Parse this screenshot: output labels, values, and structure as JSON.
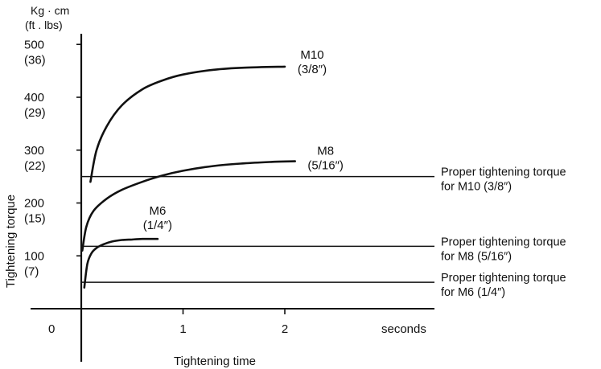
{
  "chart_data": {
    "type": "line",
    "ylabel": "Tightening torque",
    "xlabel": "Tightening time",
    "y_unit": [
      "Kg · cm",
      "(ft . lbs)"
    ],
    "x_unit": "seconds",
    "x_origin_label": "0",
    "xlim": [
      -0.25,
      3.4
    ],
    "ylim": [
      0,
      510
    ],
    "x_ticks": [
      {
        "value": 1,
        "label": "1"
      },
      {
        "value": 2,
        "label": "2"
      }
    ],
    "y_ticks": [
      {
        "value": 100,
        "label": "100",
        "sublabel": "(7)"
      },
      {
        "value": 200,
        "label": "200",
        "sublabel": "(15)"
      },
      {
        "value": 300,
        "label": "300",
        "sublabel": "(22)"
      },
      {
        "value": 400,
        "label": "400",
        "sublabel": "(29)"
      },
      {
        "value": 500,
        "label": "500",
        "sublabel": "(36)"
      }
    ],
    "series": [
      {
        "name": "M10",
        "size": "(3/8″)",
        "x": [
          0.09,
          0.15,
          0.25,
          0.4,
          0.6,
          0.8,
          1.0,
          1.3,
          1.6,
          2.0
        ],
        "y": [
          240,
          300,
          345,
          385,
          415,
          432,
          443,
          452,
          456,
          458
        ]
      },
      {
        "name": "M8",
        "size": "(5/16″)",
        "x": [
          0.01,
          0.05,
          0.12,
          0.25,
          0.4,
          0.6,
          0.8,
          1.0,
          1.3,
          1.6,
          1.9,
          2.1
        ],
        "y": [
          110,
          155,
          185,
          208,
          225,
          240,
          252,
          261,
          270,
          275,
          278,
          279
        ]
      },
      {
        "name": "M6",
        "size": "(1/4″)",
        "x": [
          0.03,
          0.06,
          0.1,
          0.15,
          0.22,
          0.3,
          0.4,
          0.5,
          0.6,
          0.75
        ],
        "y": [
          40,
          85,
          105,
          115,
          122,
          127,
          130,
          131,
          132,
          132
        ]
      }
    ],
    "reference_lines": [
      {
        "y": 250,
        "lines": [
          "Proper tightening torque",
          "for M10 (3/8″)"
        ]
      },
      {
        "y": 118,
        "lines": [
          "Proper tightening torque",
          "for M8 (5/16″)"
        ]
      },
      {
        "y": 50,
        "lines": [
          "Proper tightening torque",
          "for M6 (1/4″)"
        ]
      }
    ],
    "grid": false,
    "legend": "none"
  }
}
